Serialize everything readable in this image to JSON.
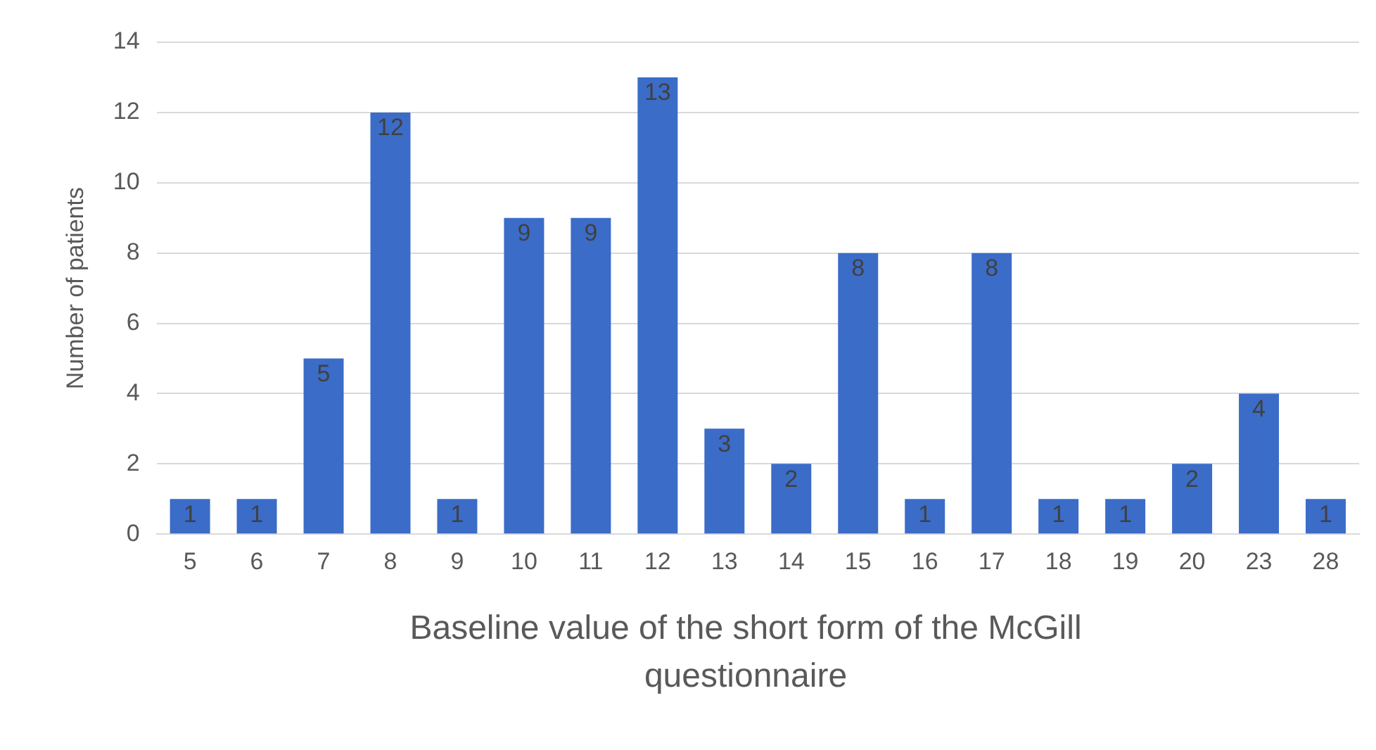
{
  "chart_data": {
    "type": "bar",
    "xlabel": "Baseline value of the short form of the McGill questionnaire",
    "ylabel": "Number of patients",
    "categories": [
      "5",
      "6",
      "7",
      "8",
      "9",
      "10",
      "11",
      "12",
      "13",
      "14",
      "15",
      "16",
      "17",
      "18",
      "19",
      "20",
      "23",
      "28"
    ],
    "values": [
      1,
      1,
      5,
      12,
      1,
      9,
      9,
      13,
      3,
      2,
      8,
      1,
      8,
      1,
      1,
      2,
      4,
      1
    ],
    "color": "#3b6cc8",
    "ylim": [
      0,
      14
    ],
    "yticks": [
      0,
      2,
      4,
      6,
      8,
      10,
      12,
      14
    ],
    "grid": "y",
    "data_labels": true
  }
}
